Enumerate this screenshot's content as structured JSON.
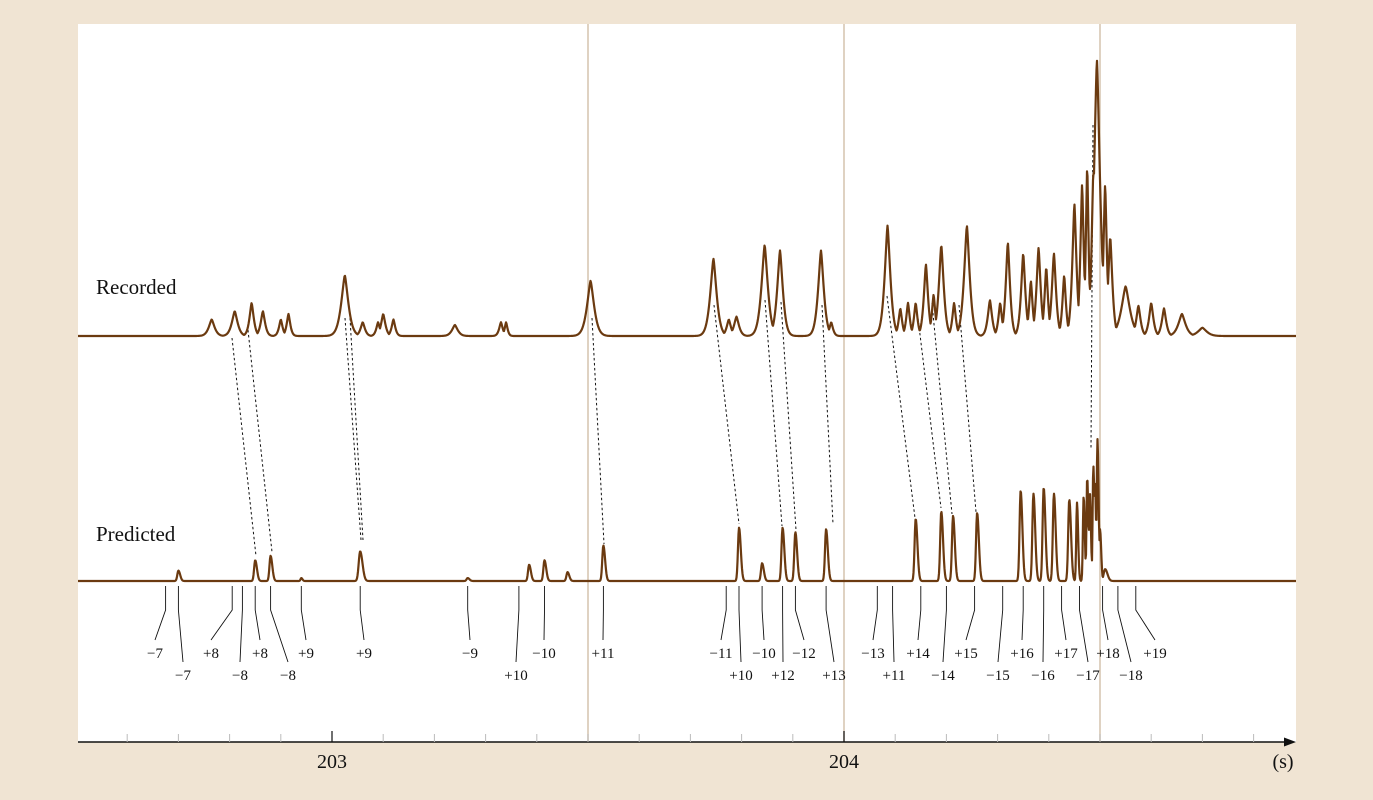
{
  "chart_data": {
    "type": "line",
    "xlabel": "(s)",
    "xlim": [
      202.5,
      204.88
    ],
    "x_ticks": [
      {
        "value": 203,
        "label": "203"
      },
      {
        "value": 204,
        "label": "204"
      }
    ],
    "x_minor_step": 0.1,
    "reference_lines_x": [
      203.5,
      204.0,
      204.5
    ],
    "series": [
      {
        "name": "Recorded",
        "peaks": [
          {
            "x": 202.765,
            "h": 0.06,
            "w": 0.008
          },
          {
            "x": 202.81,
            "h": 0.09,
            "w": 0.008
          },
          {
            "x": 202.843,
            "h": 0.12,
            "w": 0.006
          },
          {
            "x": 202.865,
            "h": 0.09,
            "w": 0.006
          },
          {
            "x": 202.9,
            "h": 0.06,
            "w": 0.005
          },
          {
            "x": 202.915,
            "h": 0.08,
            "w": 0.005
          },
          {
            "x": 203.025,
            "h": 0.22,
            "w": 0.01
          },
          {
            "x": 203.06,
            "h": 0.05,
            "w": 0.006
          },
          {
            "x": 203.09,
            "h": 0.05,
            "w": 0.005
          },
          {
            "x": 203.1,
            "h": 0.08,
            "w": 0.006
          },
          {
            "x": 203.12,
            "h": 0.06,
            "w": 0.005
          },
          {
            "x": 203.24,
            "h": 0.04,
            "w": 0.008
          },
          {
            "x": 203.33,
            "h": 0.05,
            "w": 0.005
          },
          {
            "x": 203.34,
            "h": 0.05,
            "w": 0.004
          },
          {
            "x": 203.505,
            "h": 0.2,
            "w": 0.01
          },
          {
            "x": 203.745,
            "h": 0.28,
            "w": 0.009
          },
          {
            "x": 203.775,
            "h": 0.06,
            "w": 0.006
          },
          {
            "x": 203.79,
            "h": 0.07,
            "w": 0.007
          },
          {
            "x": 203.845,
            "h": 0.33,
            "w": 0.009
          },
          {
            "x": 203.875,
            "h": 0.31,
            "w": 0.008
          },
          {
            "x": 203.955,
            "h": 0.31,
            "w": 0.008
          },
          {
            "x": 203.975,
            "h": 0.05,
            "w": 0.005
          },
          {
            "x": 204.085,
            "h": 0.4,
            "w": 0.008
          },
          {
            "x": 204.11,
            "h": 0.1,
            "w": 0.005
          },
          {
            "x": 204.125,
            "h": 0.12,
            "w": 0.005
          },
          {
            "x": 204.14,
            "h": 0.12,
            "w": 0.005
          },
          {
            "x": 204.16,
            "h": 0.26,
            "w": 0.006
          },
          {
            "x": 204.175,
            "h": 0.15,
            "w": 0.005
          },
          {
            "x": 204.19,
            "h": 0.33,
            "w": 0.007
          },
          {
            "x": 204.215,
            "h": 0.12,
            "w": 0.005
          },
          {
            "x": 204.24,
            "h": 0.4,
            "w": 0.008
          },
          {
            "x": 204.285,
            "h": 0.13,
            "w": 0.006
          },
          {
            "x": 204.305,
            "h": 0.12,
            "w": 0.005
          },
          {
            "x": 204.32,
            "h": 0.34,
            "w": 0.006
          },
          {
            "x": 204.35,
            "h": 0.3,
            "w": 0.006
          },
          {
            "x": 204.365,
            "h": 0.2,
            "w": 0.005
          },
          {
            "x": 204.38,
            "h": 0.32,
            "w": 0.006
          },
          {
            "x": 204.395,
            "h": 0.25,
            "w": 0.005
          },
          {
            "x": 204.41,
            "h": 0.3,
            "w": 0.006
          },
          {
            "x": 204.43,
            "h": 0.22,
            "w": 0.005
          },
          {
            "x": 204.45,
            "h": 0.48,
            "w": 0.006
          },
          {
            "x": 204.465,
            "h": 0.55,
            "w": 0.005
          },
          {
            "x": 204.475,
            "h": 0.62,
            "w": 0.004
          },
          {
            "x": 204.487,
            "h": 0.6,
            "w": 0.005
          },
          {
            "x": 204.494,
            "h": 1.0,
            "w": 0.009
          },
          {
            "x": 204.51,
            "h": 0.55,
            "w": 0.005
          },
          {
            "x": 204.52,
            "h": 0.36,
            "w": 0.006
          },
          {
            "x": 204.55,
            "h": 0.18,
            "w": 0.012
          },
          {
            "x": 204.575,
            "h": 0.11,
            "w": 0.006
          },
          {
            "x": 204.6,
            "h": 0.12,
            "w": 0.006
          },
          {
            "x": 204.625,
            "h": 0.1,
            "w": 0.006
          },
          {
            "x": 204.66,
            "h": 0.08,
            "w": 0.01
          },
          {
            "x": 204.7,
            "h": 0.03,
            "w": 0.012
          }
        ]
      },
      {
        "name": "Predicted",
        "peaks": [
          {
            "x": 202.7,
            "h": 0.07,
            "w": 0.003
          },
          {
            "x": 202.85,
            "h": 0.14,
            "w": 0.003
          },
          {
            "x": 202.88,
            "h": 0.17,
            "w": 0.003
          },
          {
            "x": 202.94,
            "h": 0.02,
            "w": 0.002
          },
          {
            "x": 203.055,
            "h": 0.2,
            "w": 0.004
          },
          {
            "x": 203.265,
            "h": 0.02,
            "w": 0.003
          },
          {
            "x": 203.385,
            "h": 0.11,
            "w": 0.003
          },
          {
            "x": 203.415,
            "h": 0.14,
            "w": 0.003
          },
          {
            "x": 203.46,
            "h": 0.06,
            "w": 0.003
          },
          {
            "x": 203.53,
            "h": 0.24,
            "w": 0.003
          },
          {
            "x": 203.795,
            "h": 0.36,
            "w": 0.003
          },
          {
            "x": 203.84,
            "h": 0.12,
            "w": 0.003
          },
          {
            "x": 203.88,
            "h": 0.36,
            "w": 0.003
          },
          {
            "x": 203.905,
            "h": 0.33,
            "w": 0.003
          },
          {
            "x": 203.965,
            "h": 0.35,
            "w": 0.003
          },
          {
            "x": 204.14,
            "h": 0.42,
            "w": 0.003
          },
          {
            "x": 204.19,
            "h": 0.47,
            "w": 0.003
          },
          {
            "x": 204.213,
            "h": 0.44,
            "w": 0.003
          },
          {
            "x": 204.26,
            "h": 0.46,
            "w": 0.003
          },
          {
            "x": 204.345,
            "h": 0.61,
            "w": 0.003
          },
          {
            "x": 204.37,
            "h": 0.59,
            "w": 0.003
          },
          {
            "x": 204.39,
            "h": 0.63,
            "w": 0.003
          },
          {
            "x": 204.41,
            "h": 0.59,
            "w": 0.003
          },
          {
            "x": 204.44,
            "h": 0.55,
            "w": 0.003
          },
          {
            "x": 204.455,
            "h": 0.53,
            "w": 0.002
          },
          {
            "x": 204.468,
            "h": 0.57,
            "w": 0.002
          },
          {
            "x": 204.475,
            "h": 0.7,
            "w": 0.002
          },
          {
            "x": 204.48,
            "h": 0.6,
            "w": 0.002
          },
          {
            "x": 204.487,
            "h": 0.78,
            "w": 0.002
          },
          {
            "x": 204.49,
            "h": 0.66,
            "w": 0.002
          },
          {
            "x": 204.495,
            "h": 0.96,
            "w": 0.002
          },
          {
            "x": 204.5,
            "h": 0.35,
            "w": 0.002
          },
          {
            "x": 204.51,
            "h": 0.08,
            "w": 0.004
          }
        ]
      }
    ],
    "annotations": [
      {
        "label": "−7",
        "x": 202.675,
        "row": 1
      },
      {
        "label": "−7",
        "x": 202.7,
        "row": 2
      },
      {
        "label": "+8",
        "x": 202.805,
        "row": 1
      },
      {
        "label": "−8",
        "x": 202.825,
        "row": 2
      },
      {
        "label": "+8",
        "x": 202.85,
        "row": 1
      },
      {
        "label": "−8",
        "x": 202.88,
        "row": 2
      },
      {
        "label": "+9",
        "x": 202.94,
        "row": 1
      },
      {
        "label": "+9",
        "x": 203.055,
        "row": 1
      },
      {
        "label": "−9",
        "x": 203.265,
        "row": 1
      },
      {
        "label": "+10",
        "x": 203.365,
        "row": 2
      },
      {
        "label": "−10",
        "x": 203.415,
        "row": 1
      },
      {
        "label": "+11",
        "x": 203.53,
        "row": 1
      },
      {
        "label": "−11",
        "x": 203.77,
        "row": 1
      },
      {
        "label": "+10",
        "x": 203.795,
        "row": 2
      },
      {
        "label": "−10",
        "x": 203.84,
        "row": 1
      },
      {
        "label": "+12",
        "x": 203.88,
        "row": 2
      },
      {
        "label": "−12",
        "x": 203.905,
        "row": 1
      },
      {
        "label": "+13",
        "x": 203.965,
        "row": 2
      },
      {
        "label": "−13",
        "x": 204.065,
        "row": 1
      },
      {
        "label": "+11",
        "x": 204.095,
        "row": 2
      },
      {
        "label": "+14",
        "x": 204.15,
        "row": 1
      },
      {
        "label": "−14",
        "x": 204.2,
        "row": 2
      },
      {
        "label": "+15",
        "x": 204.255,
        "row": 1
      },
      {
        "label": "−15",
        "x": 204.31,
        "row": 2
      },
      {
        "label": "+16",
        "x": 204.35,
        "row": 1
      },
      {
        "label": "−16",
        "x": 204.39,
        "row": 2
      },
      {
        "label": "+17",
        "x": 204.425,
        "row": 1
      },
      {
        "label": "−17",
        "x": 204.46,
        "row": 2
      },
      {
        "label": "+18",
        "x": 204.505,
        "row": 1
      },
      {
        "label": "−18",
        "x": 204.535,
        "row": 2
      },
      {
        "label": "+19",
        "x": 204.57,
        "row": 1
      }
    ],
    "grid": false
  }
}
